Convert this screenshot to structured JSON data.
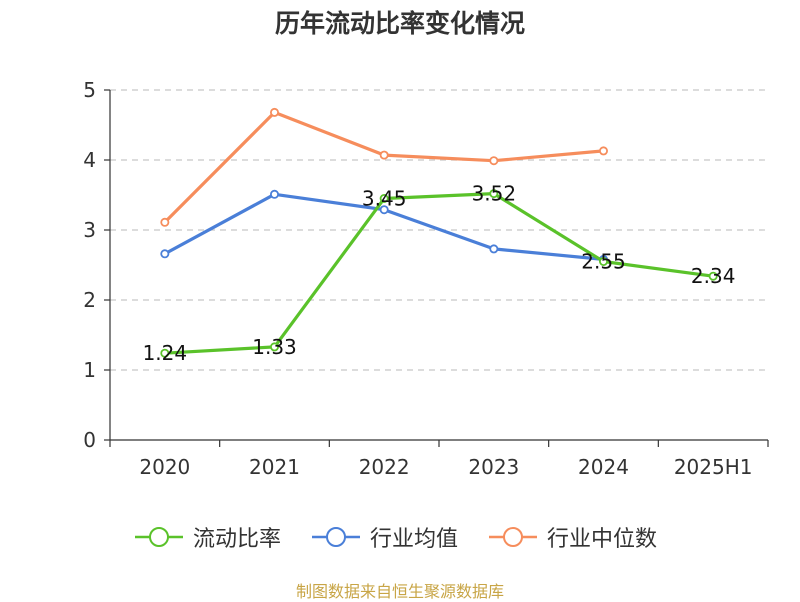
{
  "chart_data": {
    "type": "line",
    "title": "历年流动比率变化情况",
    "categories": [
      "2020",
      "2021",
      "2022",
      "2023",
      "2024",
      "2025H1"
    ],
    "ylim": [
      0,
      5
    ],
    "yticks": [
      "0",
      "1",
      "2",
      "3",
      "4",
      "5"
    ],
    "grid": true,
    "legend_position": "bottom",
    "series": [
      {
        "name": "流动比率",
        "color": "#5ac22a",
        "values": [
          1.24,
          1.33,
          3.45,
          3.52,
          2.55,
          2.34
        ],
        "labels": [
          "1.24",
          "1.33",
          "3.45",
          "3.52",
          "2.55",
          "2.34"
        ]
      },
      {
        "name": "行业均值",
        "color": "#4a7fd8",
        "values": [
          2.66,
          3.51,
          3.29,
          2.73,
          2.58,
          null
        ]
      },
      {
        "name": "行业中位数",
        "color": "#f68d5c",
        "values": [
          3.11,
          4.68,
          4.07,
          3.99,
          4.13,
          null
        ]
      }
    ]
  },
  "footer": {
    "source": "制图数据来自恒生聚源数据库"
  }
}
